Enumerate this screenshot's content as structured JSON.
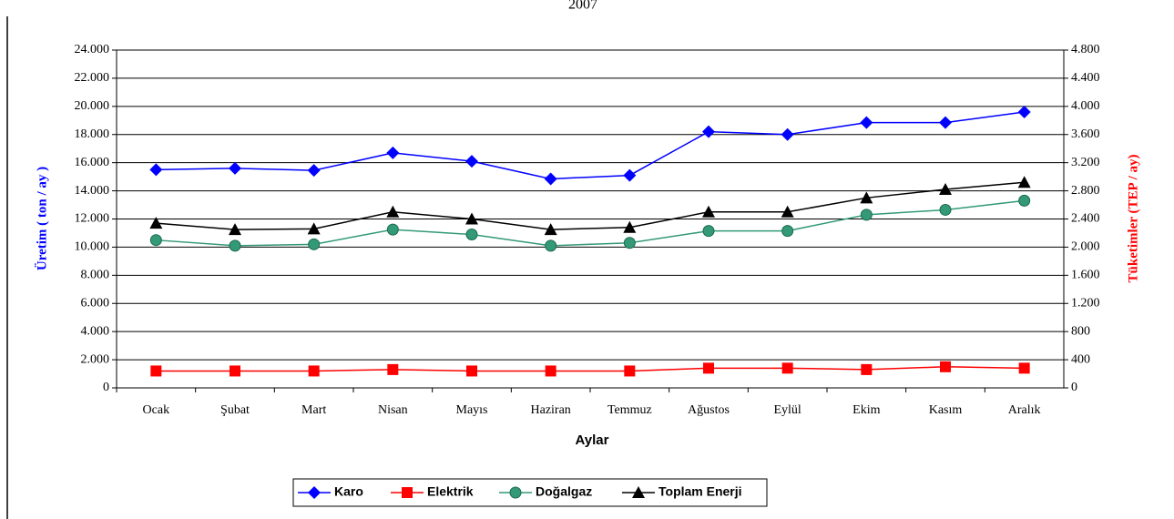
{
  "chart_data": {
    "type": "line",
    "title": "2007",
    "x_label": "Aylar",
    "y_label": "Üretim ( ton / ay )",
    "y2_label": "Tüketimler (TEP / ay)",
    "categories": [
      "Ocak",
      "Şubat",
      "Mart",
      "Nisan",
      "Mayıs",
      "Haziran",
      "Temmuz",
      "Ağustos",
      "Eylül",
      "Ekim",
      "Kasım",
      "Aralık"
    ],
    "series": [
      {
        "name": "Karo",
        "color": "#0000ff",
        "marker": "diamond",
        "axis": "y",
        "values": [
          15500,
          15600,
          15450,
          16700,
          16100,
          14850,
          15100,
          18200,
          18000,
          18850,
          18850,
          19600
        ]
      },
      {
        "name": "Elektrik",
        "color": "#ff0000",
        "marker": "square",
        "axis": "y2",
        "values": [
          240,
          240,
          240,
          260,
          240,
          240,
          240,
          280,
          280,
          260,
          300,
          280
        ]
      },
      {
        "name": "Doğalgaz",
        "color": "#339977",
        "marker": "circle",
        "axis": "y2",
        "values": [
          2100,
          2020,
          2040,
          2250,
          2180,
          2020,
          2060,
          2230,
          2230,
          2460,
          2530,
          2660
        ]
      },
      {
        "name": "Toplam Enerji",
        "color": "#000000",
        "marker": "triangle",
        "axis": "y2",
        "values": [
          2340,
          2250,
          2260,
          2500,
          2400,
          2250,
          2280,
          2500,
          2500,
          2700,
          2820,
          2920
        ]
      }
    ],
    "ylim": [
      0,
      24000
    ],
    "yticks": [
      0,
      {
        "value": 2000,
        "label": "2.000"
      },
      {
        "value": 4000,
        "label": "4.000"
      },
      {
        "value": 6000,
        "label": "6.000"
      },
      {
        "value": 8000,
        "label": "8.000"
      },
      {
        "value": 10000,
        "label": "10.000"
      },
      {
        "value": 12000,
        "label": "12.000"
      },
      {
        "value": 14000,
        "label": "14.000"
      },
      {
        "value": 16000,
        "label": "16.000"
      },
      {
        "value": 18000,
        "label": "18.000"
      },
      {
        "value": 20000,
        "label": "20.000"
      },
      {
        "value": 22000,
        "label": "22.000"
      },
      {
        "value": 24000,
        "label": "24.000"
      }
    ],
    "y2lim": [
      0,
      4800
    ],
    "y2ticks": [
      0,
      400,
      800,
      {
        "value": 1200,
        "label": "1.200"
      },
      {
        "value": 1600,
        "label": "1.600"
      },
      {
        "value": 2000,
        "label": "2.000"
      },
      {
        "value": 2400,
        "label": "2.400"
      },
      {
        "value": 2800,
        "label": "2.800"
      },
      {
        "value": 3200,
        "label": "3.200"
      },
      {
        "value": 3600,
        "label": "3.600"
      },
      {
        "value": 4000,
        "label": "4.000"
      },
      {
        "value": 4400,
        "label": "4.400"
      },
      {
        "value": 4800,
        "label": "4.800"
      }
    ],
    "grid": true,
    "legend": "bottom"
  }
}
